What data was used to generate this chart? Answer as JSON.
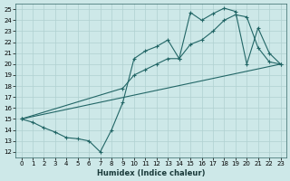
{
  "xlabel": "Humidex (Indice chaleur)",
  "xlim": [
    -0.5,
    23.5
  ],
  "ylim": [
    11.5,
    25.5
  ],
  "xticks": [
    0,
    1,
    2,
    3,
    4,
    5,
    6,
    7,
    8,
    9,
    10,
    11,
    12,
    13,
    14,
    15,
    16,
    17,
    18,
    19,
    20,
    21,
    22,
    23
  ],
  "yticks": [
    12,
    13,
    14,
    15,
    16,
    17,
    18,
    19,
    20,
    21,
    22,
    23,
    24,
    25
  ],
  "bg_color": "#cde8e8",
  "grid_color": "#b0d0d0",
  "line_color": "#226666",
  "line1_x": [
    0,
    1,
    2,
    3,
    4,
    5,
    6,
    7,
    8,
    9,
    10,
    11,
    12,
    13,
    14,
    15,
    16,
    17,
    18,
    19,
    20,
    21,
    22,
    23
  ],
  "line1_y": [
    15.0,
    14.7,
    14.2,
    13.8,
    13.3,
    13.2,
    13.0,
    12.0,
    14.0,
    16.5,
    20.5,
    21.2,
    21.6,
    22.2,
    20.5,
    24.7,
    24.0,
    24.6,
    25.1,
    24.8,
    20.0,
    23.3,
    21.0,
    20.0
  ],
  "line2_x": [
    0,
    9,
    10,
    11,
    12,
    13,
    14,
    15,
    16,
    17,
    18,
    19,
    20,
    21,
    22,
    23
  ],
  "line2_y": [
    15.0,
    17.8,
    19.0,
    19.5,
    20.0,
    20.5,
    20.5,
    21.8,
    22.2,
    23.0,
    24.0,
    24.5,
    24.3,
    21.5,
    20.2,
    20.0
  ],
  "line3_x": [
    0,
    23
  ],
  "line3_y": [
    15.0,
    20.0
  ]
}
